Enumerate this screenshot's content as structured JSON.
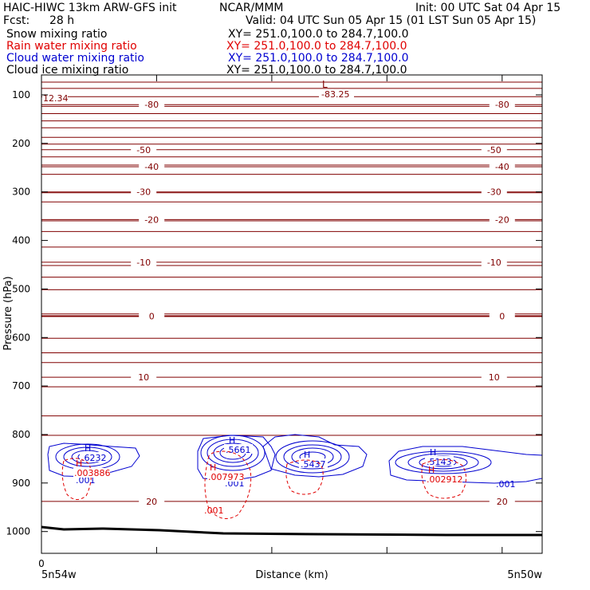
{
  "header": {
    "model": "HAIC-HIWC 13km ARW-GFS init",
    "org": "NCAR/MMM",
    "init": "Init: 00 UTC Sat 04 Apr 15",
    "fcst_label": "Fcst:",
    "fcst_value": "28 h",
    "valid": "Valid: 04 UTC Sun 05 Apr 15 (01 LST Sun 05 Apr 15)"
  },
  "fields": [
    {
      "name": "Snow mixing ratio",
      "xy": "XY= 251.0,100.0 to 284.7,100.0",
      "color": "#000000"
    },
    {
      "name": "Rain water mixing ratio",
      "xy": "XY= 251.0,100.0 to 284.7,100.0",
      "color": "#e00000"
    },
    {
      "name": "Cloud water mixing ratio",
      "xy": "XY= 251.0,100.0 to 284.7,100.0",
      "color": "#0000d0"
    },
    {
      "name": "Cloud ice mixing ratio",
      "xy": "XY= 251.0,100.0 to 284.7,100.0",
      "color": "#000000"
    }
  ],
  "chart_data": {
    "type": "contour cross-section",
    "xlabel": "Distance (km)",
    "ylabel": "Pressure (hPa)",
    "x_start_tick": "0",
    "x_left_label": "5n54w",
    "x_right_label": "5n50w",
    "ylim": [
      1050,
      70
    ],
    "y_ticks": [
      100,
      200,
      300,
      400,
      500,
      600,
      700,
      800,
      900,
      1000
    ],
    "temperature_contours": [
      {
        "value": -80,
        "p": 120,
        "labels": [
          "-80",
          "-80"
        ]
      },
      {
        "value": -50,
        "p": 213,
        "labels": [
          "-50",
          "-50"
        ]
      },
      {
        "value": -40,
        "p": 248,
        "labels": [
          "-40",
          "-40"
        ]
      },
      {
        "value": -30,
        "p": 300,
        "labels": [
          "-30",
          "-30"
        ]
      },
      {
        "value": -20,
        "p": 357,
        "labels": [
          "-20",
          "-20"
        ]
      },
      {
        "value": -10,
        "p": 445,
        "labels": [
          "-10",
          "-10"
        ]
      },
      {
        "value": 0,
        "p": 556,
        "labels": [
          "0",
          "0"
        ]
      },
      {
        "value": 10,
        "p": 682,
        "labels": [
          "10",
          "10"
        ]
      },
      {
        "value": 20,
        "p": 938,
        "labels": [
          "20",
          "20"
        ]
      }
    ],
    "extreme_labels": [
      {
        "text": "L",
        "color": "#800000"
      },
      {
        "text": "-83.25",
        "color": "#800000"
      },
      {
        "text": "12.34",
        "color": "#800000"
      }
    ],
    "cloud_water_maxima": [
      {
        "label": "H",
        "value": ".6232",
        "x_frac": 0.08,
        "p": 853
      },
      {
        "label": "H",
        "value": ".5661",
        "x_frac": 0.385,
        "p": 828
      },
      {
        "label": "H",
        "value": ".5437",
        "x_frac": 0.53,
        "p": 856
      },
      {
        "label": "H",
        "value": ".5143",
        "x_frac": 0.78,
        "p": 858
      }
    ],
    "cloud_water_min_labels": [
      ".001",
      ".001",
      ".001"
    ],
    "rain_water_maxima": [
      {
        "label": "H",
        "value": ".003886",
        "x_frac": 0.07,
        "p": 880
      },
      {
        "label": "H",
        "value": ".007973",
        "x_frac": 0.35,
        "p": 893
      },
      {
        "label": "H",
        "value": ".002912",
        "x_frac": 0.81,
        "p": 895
      }
    ],
    "rain_water_min_label": ".001",
    "colors": {
      "temperature": "#800000",
      "cloud_water": "#0000d0",
      "rain_water": "#e00000",
      "terrain": "#000000"
    }
  }
}
